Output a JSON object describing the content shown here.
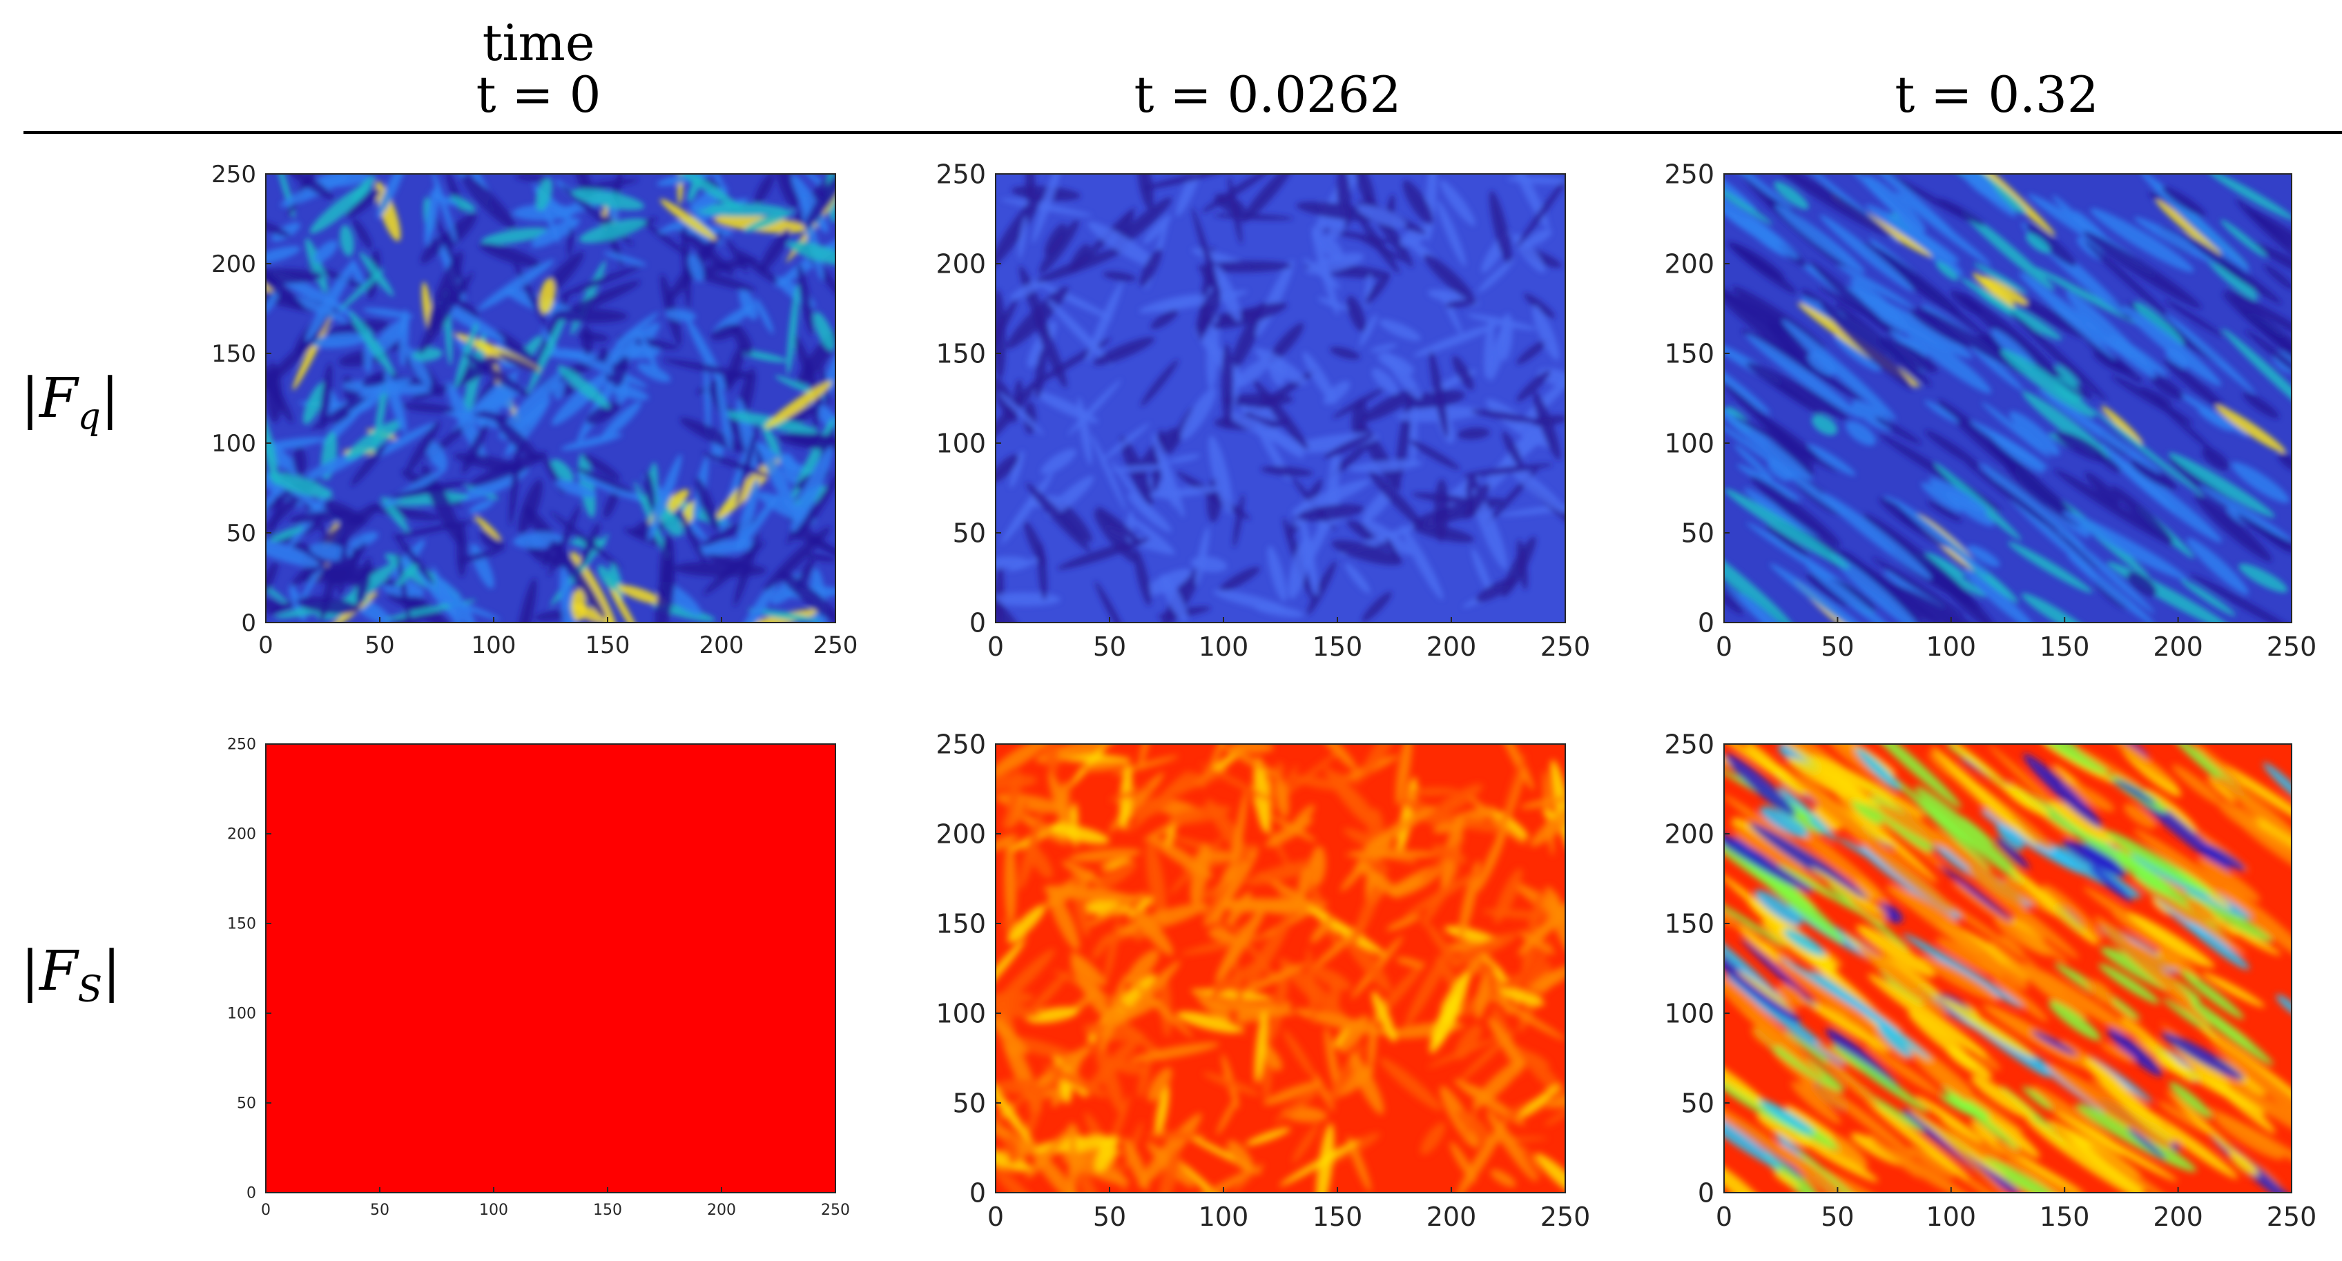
{
  "header": {
    "time_label": "time",
    "columns": [
      "t = 0",
      "t = 0.0262",
      "t = 0.32"
    ]
  },
  "rows": [
    {
      "label_main": "|F",
      "label_sub": "q",
      "label_close": "|"
    },
    {
      "label_main": "|F",
      "label_sub": "S",
      "label_close": "|"
    }
  ],
  "colors": {
    "parula_dark": "#3d26a8",
    "parula_blue": "#2c6ff7",
    "parula_cyan": "#1fb8c8",
    "parula_yellow": "#f7e022",
    "hot_red": "#ff0000",
    "hot_orange": "#ff8800",
    "hot_yellow": "#ffe000"
  },
  "chart_data": [
    {
      "type": "heatmap",
      "name": "Fq t=0",
      "xlim": [
        0,
        250
      ],
      "ylim": [
        0,
        250
      ],
      "xticks": [
        "0",
        "50",
        "100",
        "150",
        "200",
        "250"
      ],
      "yticks": [
        "0",
        "50",
        "100",
        "150",
        "200",
        "250"
      ],
      "colormap": "parula"
    },
    {
      "type": "heatmap",
      "name": "Fq t=0.0262",
      "xlim": [
        0,
        250
      ],
      "ylim": [
        0,
        250
      ],
      "xticks": [
        "0",
        "50",
        "100",
        "150",
        "200",
        "250"
      ],
      "yticks": [
        "0",
        "50",
        "100",
        "150",
        "200",
        "250"
      ],
      "colormap": "parula"
    },
    {
      "type": "heatmap",
      "name": "Fq t=0.32",
      "xlim": [
        0,
        250
      ],
      "ylim": [
        0,
        250
      ],
      "xticks": [
        "0",
        "50",
        "100",
        "150",
        "200",
        "250"
      ],
      "yticks": [
        "0",
        "50",
        "100",
        "150",
        "200",
        "250"
      ],
      "colormap": "parula"
    },
    {
      "type": "heatmap",
      "name": "FS t=0",
      "xlim": [
        0,
        250
      ],
      "ylim": [
        0,
        250
      ],
      "xticks": [
        "0",
        "50",
        "100",
        "150",
        "200",
        "250"
      ],
      "yticks": [
        "0",
        "50",
        "100",
        "150",
        "200",
        "250"
      ],
      "colormap": "uniform-red"
    },
    {
      "type": "heatmap",
      "name": "FS t=0.0262",
      "xlim": [
        0,
        250
      ],
      "ylim": [
        0,
        250
      ],
      "xticks": [
        "0",
        "50",
        "100",
        "150",
        "200",
        "250"
      ],
      "yticks": [
        "0",
        "50",
        "100",
        "150",
        "200",
        "250"
      ],
      "colormap": "jet-high"
    },
    {
      "type": "heatmap",
      "name": "FS t=0.32",
      "xlim": [
        0,
        250
      ],
      "ylim": [
        0,
        250
      ],
      "xticks": [
        "0",
        "50",
        "100",
        "150",
        "200",
        "250"
      ],
      "yticks": [
        "0",
        "50",
        "100",
        "150",
        "200",
        "250"
      ],
      "colormap": "jet"
    }
  ]
}
